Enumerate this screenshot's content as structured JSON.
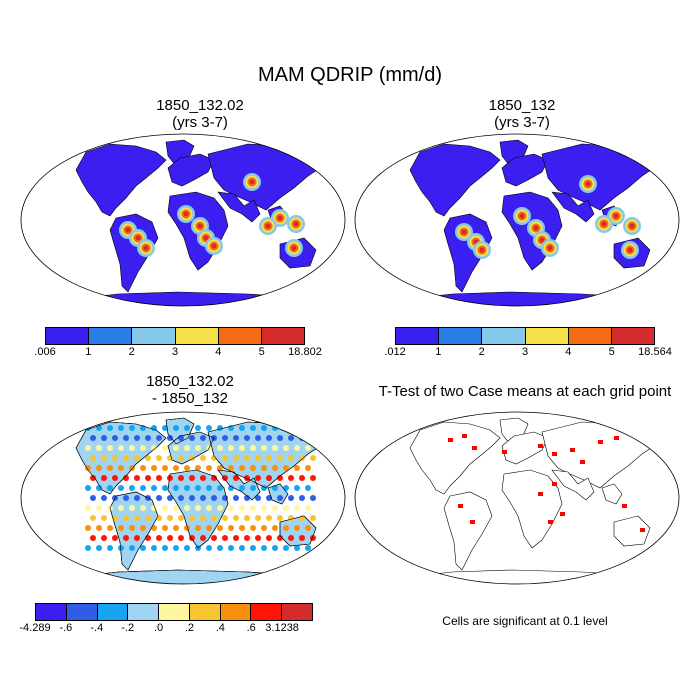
{
  "title": "MAM QDRIP (mm/d)",
  "panels": {
    "top_left": {
      "title1": "1850_132.02",
      "title2": "(yrs 3-7)"
    },
    "top_right": {
      "title1": "1850_132",
      "title2": "(yrs 3-7)"
    },
    "bottom_left": {
      "title1": "1850_132.02",
      "title2": "- 1850_132"
    },
    "bottom_right": {
      "title1": "T-Test of two Case means at each grid point"
    }
  },
  "colorbars": {
    "top_left": {
      "labels": [
        ".006",
        "1",
        "2",
        "3",
        "4",
        "5",
        "18.802"
      ],
      "colors": [
        "#3b1ef0",
        "#2a7de8",
        "#86c8ec",
        "#f5e04a",
        "#f46d14",
        "#d42c2c"
      ]
    },
    "top_right": {
      "labels": [
        ".012",
        "1",
        "2",
        "3",
        "4",
        "5",
        "18.564"
      ],
      "colors": [
        "#3b1ef0",
        "#2a7de8",
        "#86c8ec",
        "#f5e04a",
        "#f46d14",
        "#d42c2c"
      ]
    },
    "bottom_left": {
      "labels": [
        "-4.289",
        "-.6",
        "-.4",
        "-.2",
        ".0",
        ".2",
        ".4",
        ".6",
        "3.1238"
      ],
      "colors": [
        "#3b1ef0",
        "#2f5ee6",
        "#16a3f2",
        "#9fd5f3",
        "#fff6a0",
        "#f8c432",
        "#f7900c",
        "#ff1408",
        "#d42c2c"
      ]
    }
  },
  "note": "Cells are significant at 0.1 level",
  "significance_color": "#ff0000"
}
